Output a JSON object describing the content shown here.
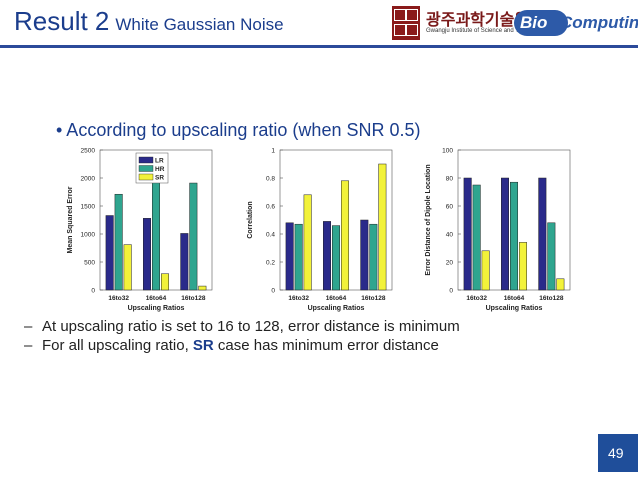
{
  "header": {
    "title": "Result 2",
    "subtitle": "White Gaussian Noise",
    "logo_korean": "광주과학기술원",
    "logo_english": "Gwangju Institute of Science and Technology",
    "bio_logo_part1": "Bio",
    "bio_logo_part2": "Computing"
  },
  "bullet": "• According to upscaling ratio (when SNR 0.5)",
  "notes": [
    {
      "dash": "–",
      "text": "At upscaling ratio is set to 16 to 128, error distance is minimum"
    },
    {
      "dash": "–",
      "pre": "For all upscaling ratio, ",
      "bold": "SR",
      "post": " case has minimum error distance"
    }
  ],
  "page_number": "49",
  "colors": {
    "LR": "#2a2a8a",
    "HR": "#2fa58f",
    "SR": "#f2f23a",
    "accent": "#1b3d8c"
  },
  "chart_data": [
    {
      "type": "bar",
      "categories": [
        "16to32",
        "16to64",
        "16to128"
      ],
      "series": [
        {
          "name": "LR",
          "values": [
            1330,
            1280,
            1010
          ]
        },
        {
          "name": "HR",
          "values": [
            1710,
            2220,
            1910
          ]
        },
        {
          "name": "SR",
          "values": [
            810,
            290,
            70
          ]
        }
      ],
      "xlabel": "Upscaling Ratios",
      "ylabel": "Mean Squared Error",
      "ylim": [
        0,
        2500
      ],
      "yticks": [
        0,
        500,
        1000,
        1500,
        2000,
        2500
      ],
      "legend": "top-left"
    },
    {
      "type": "bar",
      "categories": [
        "16to32",
        "16to64",
        "16to128"
      ],
      "series": [
        {
          "values": [
            0.48,
            0.49,
            0.5
          ]
        },
        {
          "values": [
            0.47,
            0.46,
            0.47
          ]
        },
        {
          "values": [
            0.68,
            0.78,
            0.9
          ]
        }
      ],
      "xlabel": "Upscaling Ratios",
      "ylabel": "Correlation",
      "ylim": [
        0,
        1
      ],
      "yticks": [
        0,
        0.2,
        0.4,
        0.6,
        0.8,
        1
      ]
    },
    {
      "type": "bar",
      "categories": [
        "16to32",
        "16to64",
        "16to128"
      ],
      "series": [
        {
          "values": [
            80,
            80,
            80
          ]
        },
        {
          "values": [
            75,
            77,
            48
          ]
        },
        {
          "values": [
            28,
            34,
            8
          ]
        }
      ],
      "xlabel": "Upscaling Ratios",
      "ylabel": "Error Distance of Dipole Location",
      "ylim": [
        0,
        100
      ],
      "yticks": [
        0,
        20,
        40,
        60,
        80,
        100
      ]
    }
  ]
}
